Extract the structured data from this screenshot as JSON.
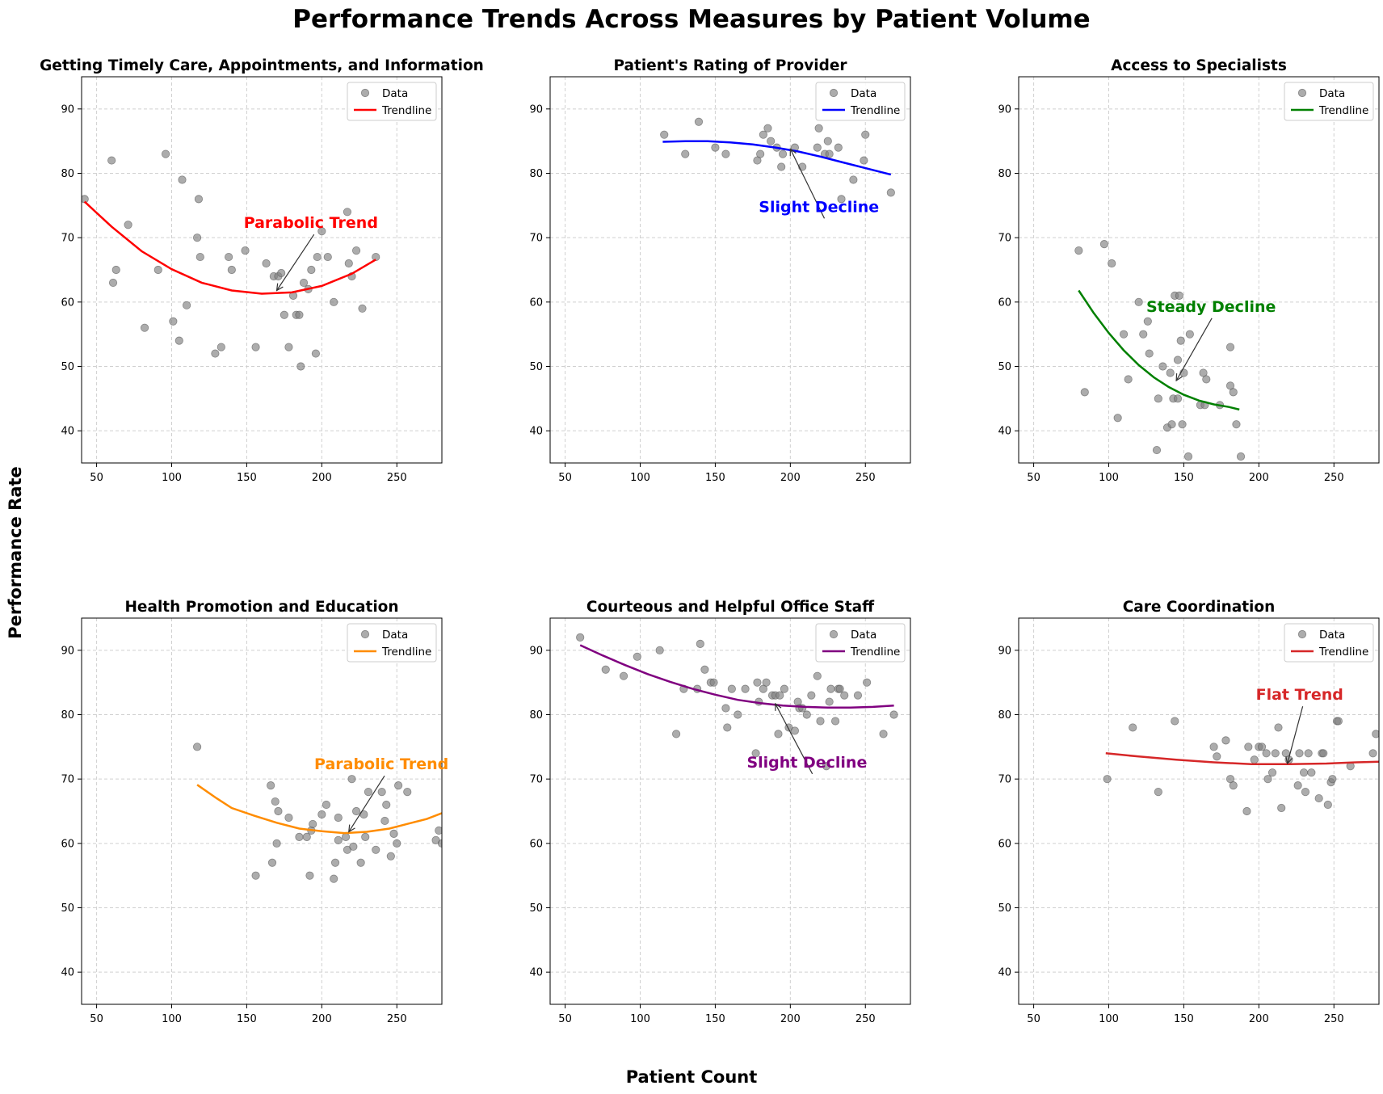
{
  "figure": {
    "title": "Performance Trends Across Measures by Patient Volume",
    "xlabel": "Patient Count",
    "ylabel": "Performance Rate"
  },
  "chart_data": [
    {
      "type": "scatter",
      "title": "Getting Timely Care, Appointments, and Information",
      "xlim": [
        40,
        280
      ],
      "ylim": [
        35,
        95
      ],
      "xticks": [
        50,
        100,
        150,
        200,
        250
      ],
      "yticks": [
        40,
        50,
        60,
        70,
        80,
        90
      ],
      "grid": true,
      "legend_position": "top-right",
      "legend": [
        "Data",
        "Trendline"
      ],
      "trend_color": "#ff0000",
      "points": [
        [
          42,
          76
        ],
        [
          60,
          82
        ],
        [
          61,
          63
        ],
        [
          63,
          65
        ],
        [
          71,
          72
        ],
        [
          82,
          56
        ],
        [
          91,
          65
        ],
        [
          96,
          83
        ],
        [
          101,
          57
        ],
        [
          105,
          54
        ],
        [
          107,
          79
        ],
        [
          110,
          59.5
        ],
        [
          117,
          70
        ],
        [
          118,
          76
        ],
        [
          119,
          67
        ],
        [
          129,
          52
        ],
        [
          133,
          53
        ],
        [
          138,
          67
        ],
        [
          140,
          65
        ],
        [
          149,
          68
        ],
        [
          156,
          53
        ],
        [
          163,
          66
        ],
        [
          168,
          64
        ],
        [
          171,
          64
        ],
        [
          173,
          64.5
        ],
        [
          175,
          58
        ],
        [
          178,
          53
        ],
        [
          181,
          61
        ],
        [
          183,
          58
        ],
        [
          185,
          58
        ],
        [
          186,
          50
        ],
        [
          188,
          63
        ],
        [
          191,
          62
        ],
        [
          193,
          65
        ],
        [
          196,
          52
        ],
        [
          197,
          67
        ],
        [
          200,
          71
        ],
        [
          204,
          67
        ],
        [
          208,
          60
        ],
        [
          217,
          74
        ],
        [
          218,
          66
        ],
        [
          220,
          64
        ],
        [
          223,
          68
        ],
        [
          227,
          59
        ],
        [
          236,
          67
        ]
      ],
      "trend": [
        [
          42,
          75.6
        ],
        [
          60,
          71.7
        ],
        [
          80,
          67.9
        ],
        [
          100,
          65.1
        ],
        [
          120,
          63
        ],
        [
          140,
          61.8
        ],
        [
          160,
          61.3
        ],
        [
          180,
          61.5
        ],
        [
          200,
          62.5
        ],
        [
          220,
          64.4
        ],
        [
          236,
          66.6
        ]
      ],
      "annotation": {
        "text": "Parabolic Trend",
        "x": 170,
        "y": 61.8,
        "text_x": 148,
        "text_y": 71.5,
        "color": "#ff0000"
      }
    },
    {
      "type": "scatter",
      "title": "Patient's Rating of Provider",
      "xlim": [
        40,
        280
      ],
      "ylim": [
        35,
        95
      ],
      "xticks": [
        50,
        100,
        150,
        200,
        250
      ],
      "yticks": [
        40,
        50,
        60,
        70,
        80,
        90
      ],
      "grid": true,
      "legend_position": "top-right",
      "legend": [
        "Data",
        "Trendline"
      ],
      "trend_color": "#0000ff",
      "points": [
        [
          116,
          86
        ],
        [
          130,
          83
        ],
        [
          139,
          88
        ],
        [
          150,
          84
        ],
        [
          157,
          83
        ],
        [
          178,
          82
        ],
        [
          180,
          83
        ],
        [
          182,
          86
        ],
        [
          185,
          87
        ],
        [
          187,
          85
        ],
        [
          191,
          84
        ],
        [
          194,
          81
        ],
        [
          195,
          83
        ],
        [
          203,
          84
        ],
        [
          208,
          81
        ],
        [
          218,
          84
        ],
        [
          219,
          87
        ],
        [
          223,
          83
        ],
        [
          225,
          85
        ],
        [
          226,
          83
        ],
        [
          232,
          84
        ],
        [
          234,
          76
        ],
        [
          242,
          79
        ],
        [
          249,
          82
        ],
        [
          250,
          86
        ],
        [
          267,
          77
        ]
      ],
      "trend": [
        [
          115,
          84.9
        ],
        [
          130,
          85
        ],
        [
          145,
          85
        ],
        [
          160,
          84.8
        ],
        [
          175,
          84.5
        ],
        [
          190,
          84
        ],
        [
          205,
          83.4
        ],
        [
          220,
          82.6
        ],
        [
          235,
          81.7
        ],
        [
          250,
          80.8
        ],
        [
          267,
          79.8
        ]
      ],
      "annotation": {
        "text": "Slight Decline",
        "x": 200,
        "y": 83.8,
        "text_x": 179,
        "text_y": 74,
        "color": "#0000ff"
      }
    },
    {
      "type": "scatter",
      "title": "Access to Specialists",
      "xlim": [
        40,
        280
      ],
      "ylim": [
        35,
        95
      ],
      "xticks": [
        50,
        100,
        150,
        200,
        250
      ],
      "yticks": [
        40,
        50,
        60,
        70,
        80,
        90
      ],
      "grid": true,
      "legend_position": "top-right",
      "legend": [
        "Data",
        "Trendline"
      ],
      "trend_color": "#008000",
      "points": [
        [
          80,
          68
        ],
        [
          84,
          46
        ],
        [
          97,
          69
        ],
        [
          102,
          66
        ],
        [
          106,
          42
        ],
        [
          110,
          55
        ],
        [
          113,
          48
        ],
        [
          120,
          60
        ],
        [
          123,
          55
        ],
        [
          126,
          57
        ],
        [
          127,
          52
        ],
        [
          132,
          37
        ],
        [
          133,
          45
        ],
        [
          136,
          50
        ],
        [
          139,
          40.5
        ],
        [
          141,
          49
        ],
        [
          142,
          41
        ],
        [
          143,
          45
        ],
        [
          144,
          61
        ],
        [
          146,
          51
        ],
        [
          146,
          45
        ],
        [
          147,
          61
        ],
        [
          148,
          54
        ],
        [
          149,
          41
        ],
        [
          150,
          49
        ],
        [
          153,
          36
        ],
        [
          154,
          55
        ],
        [
          161,
          44
        ],
        [
          163,
          49
        ],
        [
          164,
          44
        ],
        [
          165,
          48
        ],
        [
          174,
          44
        ],
        [
          181,
          47
        ],
        [
          181,
          53
        ],
        [
          183,
          46
        ],
        [
          185,
          41
        ],
        [
          188,
          36
        ]
      ],
      "trend": [
        [
          80,
          61.8
        ],
        [
          90,
          58.3
        ],
        [
          100,
          55.2
        ],
        [
          110,
          52.5
        ],
        [
          120,
          50.2
        ],
        [
          130,
          48.3
        ],
        [
          140,
          46.8
        ],
        [
          150,
          45.6
        ],
        [
          160,
          44.7
        ],
        [
          170,
          44.1
        ],
        [
          180,
          43.7
        ],
        [
          187,
          43.3
        ]
      ],
      "annotation": {
        "text": "Steady Decline",
        "x": 145,
        "y": 47.8,
        "text_x": 125,
        "text_y": 58.5,
        "color": "#008000"
      }
    },
    {
      "type": "scatter",
      "title": "Health Promotion and Education",
      "xlim": [
        40,
        280
      ],
      "ylim": [
        35,
        95
      ],
      "xticks": [
        50,
        100,
        150,
        200,
        250
      ],
      "yticks": [
        40,
        50,
        60,
        70,
        80,
        90
      ],
      "grid": true,
      "legend_position": "top-right",
      "legend": [
        "Data",
        "Trendline"
      ],
      "trend_color": "#ff8c00",
      "points": [
        [
          117,
          75
        ],
        [
          156,
          55
        ],
        [
          166,
          69
        ],
        [
          167,
          57
        ],
        [
          169,
          66.5
        ],
        [
          170,
          60
        ],
        [
          171,
          65
        ],
        [
          178,
          64
        ],
        [
          185,
          61
        ],
        [
          190,
          61
        ],
        [
          192,
          55
        ],
        [
          193,
          62
        ],
        [
          194,
          63
        ],
        [
          200,
          64.5
        ],
        [
          203,
          66
        ],
        [
          208,
          54.5
        ],
        [
          209,
          57
        ],
        [
          211,
          60.5
        ],
        [
          211,
          64
        ],
        [
          216,
          61
        ],
        [
          217,
          59
        ],
        [
          220,
          70
        ],
        [
          221,
          59.5
        ],
        [
          223,
          65
        ],
        [
          226,
          57
        ],
        [
          228,
          64.5
        ],
        [
          229,
          61
        ],
        [
          231,
          68
        ],
        [
          236,
          59
        ],
        [
          240,
          68
        ],
        [
          242,
          63.5
        ],
        [
          243,
          66
        ],
        [
          246,
          58
        ],
        [
          248,
          61.5
        ],
        [
          250,
          60
        ],
        [
          251,
          69
        ],
        [
          257,
          68
        ],
        [
          276,
          60.5
        ],
        [
          278,
          62
        ],
        [
          280,
          60
        ]
      ],
      "trend": [
        [
          117,
          69.1
        ],
        [
          130,
          67
        ],
        [
          140,
          65.5
        ],
        [
          155,
          64.3
        ],
        [
          170,
          63.2
        ],
        [
          185,
          62.3
        ],
        [
          200,
          61.9
        ],
        [
          215,
          61.6
        ],
        [
          230,
          61.8
        ],
        [
          245,
          62.3
        ],
        [
          260,
          63.2
        ],
        [
          270,
          63.8
        ],
        [
          280,
          64.7
        ]
      ],
      "annotation": {
        "text": "Parabolic Trend",
        "x": 218,
        "y": 61.8,
        "text_x": 195,
        "text_y": 71.5,
        "color": "#ff8c00"
      }
    },
    {
      "type": "scatter",
      "title": "Courteous and Helpful Office Staff",
      "xlim": [
        40,
        280
      ],
      "ylim": [
        35,
        95
      ],
      "xticks": [
        50,
        100,
        150,
        200,
        250
      ],
      "yticks": [
        40,
        50,
        60,
        70,
        80,
        90
      ],
      "grid": true,
      "legend_position": "top-right",
      "legend": [
        "Data",
        "Trendline"
      ],
      "trend_color": "#800080",
      "points": [
        [
          60,
          92
        ],
        [
          77,
          87
        ],
        [
          89,
          86
        ],
        [
          98,
          89
        ],
        [
          113,
          90
        ],
        [
          124,
          77
        ],
        [
          129,
          84
        ],
        [
          138,
          84
        ],
        [
          140,
          91
        ],
        [
          143,
          87
        ],
        [
          147,
          85
        ],
        [
          149,
          85
        ],
        [
          157,
          81
        ],
        [
          158,
          78
        ],
        [
          161,
          84
        ],
        [
          165,
          80
        ],
        [
          170,
          84
        ],
        [
          177,
          74
        ],
        [
          178,
          85
        ],
        [
          179,
          82
        ],
        [
          182,
          84
        ],
        [
          184,
          85
        ],
        [
          188,
          83
        ],
        [
          190,
          83
        ],
        [
          192,
          77
        ],
        [
          193,
          83
        ],
        [
          196,
          84
        ],
        [
          199,
          78
        ],
        [
          203,
          77.5
        ],
        [
          205,
          82
        ],
        [
          206,
          81
        ],
        [
          208,
          81
        ],
        [
          211,
          80
        ],
        [
          214,
          83
        ],
        [
          218,
          86
        ],
        [
          220,
          79
        ],
        [
          224,
          72
        ],
        [
          226,
          82
        ],
        [
          227,
          84
        ],
        [
          230,
          79
        ],
        [
          232,
          84
        ],
        [
          233,
          84
        ],
        [
          236,
          83
        ],
        [
          245,
          83
        ],
        [
          251,
          85
        ],
        [
          262,
          77
        ],
        [
          269,
          80
        ]
      ],
      "trend": [
        [
          60,
          90.8
        ],
        [
          75,
          89.2
        ],
        [
          90,
          87.7
        ],
        [
          105,
          86.3
        ],
        [
          120,
          85.1
        ],
        [
          135,
          84
        ],
        [
          150,
          83.1
        ],
        [
          165,
          82.3
        ],
        [
          180,
          81.8
        ],
        [
          195,
          81.4
        ],
        [
          210,
          81.2
        ],
        [
          225,
          81.1
        ],
        [
          240,
          81.1
        ],
        [
          255,
          81.2
        ],
        [
          269,
          81.4
        ]
      ],
      "annotation": {
        "text": "Slight Decline",
        "x": 190,
        "y": 81.7,
        "text_x": 171,
        "text_y": 71.8,
        "color": "#800080"
      }
    },
    {
      "type": "scatter",
      "title": "Care Coordination",
      "xlim": [
        40,
        280
      ],
      "ylim": [
        35,
        95
      ],
      "xticks": [
        50,
        100,
        150,
        200,
        250
      ],
      "yticks": [
        40,
        50,
        60,
        70,
        80,
        90
      ],
      "grid": true,
      "legend_position": "top-right",
      "legend": [
        "Data",
        "Trendline"
      ],
      "trend_color": "#d62728",
      "points": [
        [
          99,
          70
        ],
        [
          116,
          78
        ],
        [
          133,
          68
        ],
        [
          144,
          79
        ],
        [
          170,
          75
        ],
        [
          172,
          73.5
        ],
        [
          178,
          76
        ],
        [
          181,
          70
        ],
        [
          183,
          69
        ],
        [
          192,
          65
        ],
        [
          193,
          75
        ],
        [
          197,
          73
        ],
        [
          200,
          75
        ],
        [
          202,
          75
        ],
        [
          205,
          74
        ],
        [
          206,
          70
        ],
        [
          209,
          71
        ],
        [
          211,
          74
        ],
        [
          213,
          78
        ],
        [
          215,
          65.5
        ],
        [
          218,
          74
        ],
        [
          220,
          73
        ],
        [
          226,
          69
        ],
        [
          227,
          74
        ],
        [
          230,
          71
        ],
        [
          231,
          68
        ],
        [
          233,
          74
        ],
        [
          235,
          71
        ],
        [
          240,
          67
        ],
        [
          242,
          74
        ],
        [
          243,
          74
        ],
        [
          246,
          66
        ],
        [
          248,
          69.5
        ],
        [
          249,
          70
        ],
        [
          252,
          79
        ],
        [
          253,
          79
        ],
        [
          261,
          72
        ],
        [
          276,
          74
        ],
        [
          278,
          77
        ]
      ],
      "trend": [
        [
          98,
          74
        ],
        [
          120,
          73.5
        ],
        [
          145,
          73
        ],
        [
          170,
          72.6
        ],
        [
          195,
          72.3
        ],
        [
          220,
          72.3
        ],
        [
          245,
          72.4
        ],
        [
          265,
          72.6
        ],
        [
          280,
          72.7
        ]
      ],
      "annotation": {
        "text": "Flat Trend",
        "x": 219,
        "y": 72.4,
        "text_x": 198,
        "text_y": 82.3,
        "color": "#d62728"
      }
    }
  ]
}
